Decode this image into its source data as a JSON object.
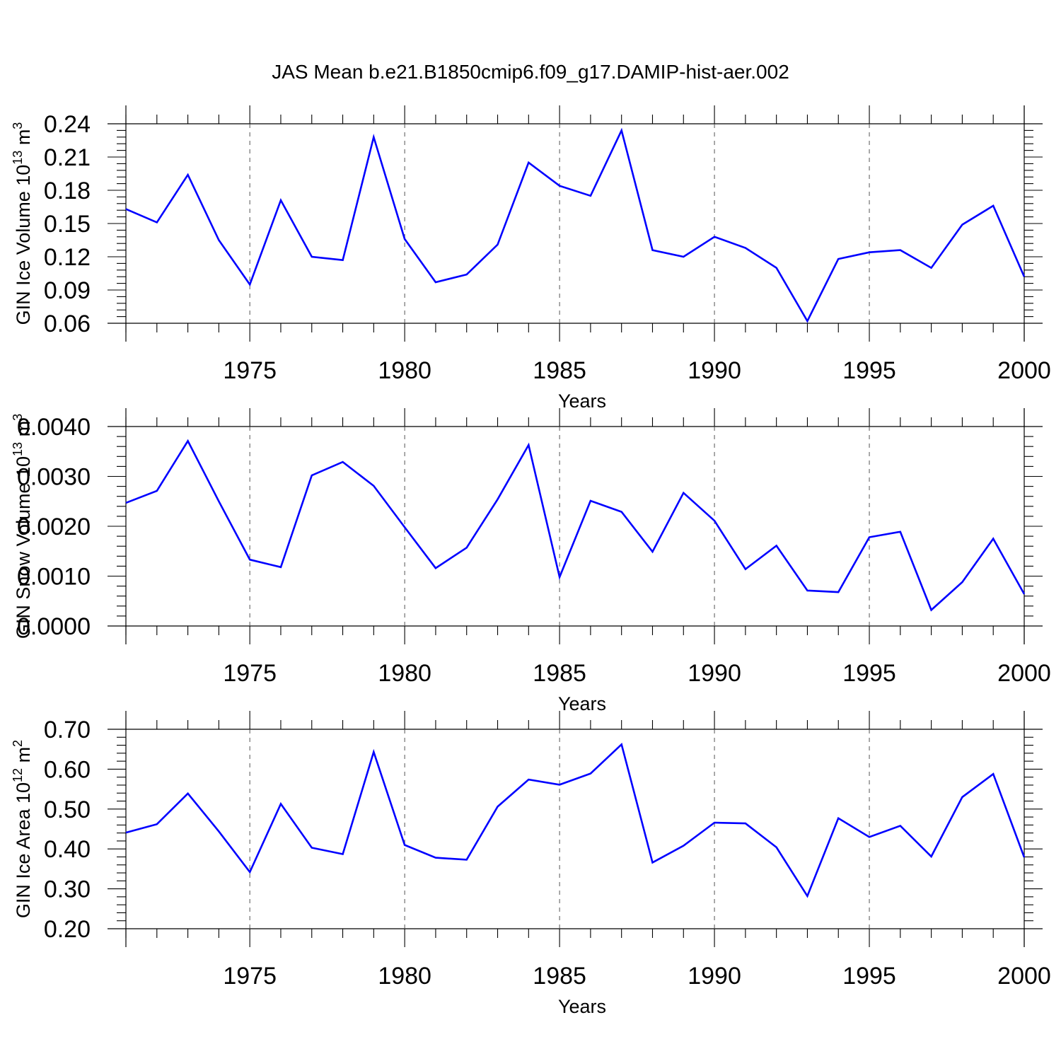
{
  "title": "JAS Mean b.e21.B1850cmip6.f09_g17.DAMIP-hist-aer.002",
  "colors": {
    "line": "#0000ff",
    "grid": "#555555",
    "axis": "#000000"
  },
  "chart_data": [
    {
      "type": "line",
      "ylabel_main": "GIN Ice Volume 10",
      "ylabel_exp": "13",
      "ylabel_unit": " m",
      "ylabel_unit_exp": "3",
      "xlabel": "Years",
      "xlim": [
        1971,
        2000
      ],
      "ylim": [
        0.06,
        0.24
      ],
      "yticks": [
        0.06,
        0.09,
        0.12,
        0.15,
        0.18,
        0.21,
        0.24
      ],
      "ytick_labels": [
        "0.06",
        "0.09",
        "0.12",
        "0.15",
        "0.18",
        "0.21",
        "0.24"
      ],
      "yminor_step": 0.006,
      "xticks": [
        1975,
        1980,
        1985,
        1990,
        1995,
        2000
      ],
      "xtick_labels": [
        "1975",
        "1980",
        "1985",
        "1990",
        "1995",
        "2000"
      ],
      "x": [
        1971,
        1972,
        1973,
        1974,
        1975,
        1976,
        1977,
        1978,
        1979,
        1980,
        1981,
        1982,
        1983,
        1984,
        1985,
        1986,
        1987,
        1988,
        1989,
        1990,
        1991,
        1992,
        1993,
        1994,
        1995,
        1996,
        1997,
        1998,
        1999,
        2000
      ],
      "series": [
        {
          "name": "GIN Ice Volume",
          "values": [
            0.163,
            0.151,
            0.194,
            0.135,
            0.095,
            0.171,
            0.12,
            0.117,
            0.228,
            0.136,
            0.097,
            0.104,
            0.131,
            0.205,
            0.184,
            0.175,
            0.234,
            0.126,
            0.12,
            0.138,
            0.128,
            0.11,
            0.062,
            0.118,
            0.124,
            0.126,
            0.11,
            0.149,
            0.166,
            0.102
          ]
        }
      ]
    },
    {
      "type": "line",
      "ylabel_main": "GIN Snow Volume 10",
      "ylabel_exp": "13",
      "ylabel_unit": " m",
      "ylabel_unit_exp": "3",
      "xlabel": "Years",
      "xlim": [
        1971,
        2000
      ],
      "ylim": [
        0.0,
        0.004
      ],
      "yticks": [
        0.0,
        0.001,
        0.002,
        0.003,
        0.004
      ],
      "ytick_labels": [
        "0.0000",
        "0.0010",
        "0.0020",
        "0.0030",
        "0.0040"
      ],
      "yminor_step": 0.0002,
      "xticks": [
        1975,
        1980,
        1985,
        1990,
        1995,
        2000
      ],
      "xtick_labels": [
        "1975",
        "1980",
        "1985",
        "1990",
        "1995",
        "2000"
      ],
      "x": [
        1971,
        1972,
        1973,
        1974,
        1975,
        1976,
        1977,
        1978,
        1979,
        1980,
        1981,
        1982,
        1983,
        1984,
        1985,
        1986,
        1987,
        1988,
        1989,
        1990,
        1991,
        1992,
        1993,
        1994,
        1995,
        1996,
        1997,
        1998,
        1999,
        2000
      ],
      "series": [
        {
          "name": "GIN Snow Volume",
          "values": [
            0.00247,
            0.00271,
            0.00371,
            0.0025,
            0.00133,
            0.00118,
            0.00302,
            0.00329,
            0.00281,
            0.00198,
            0.00116,
            0.00157,
            0.00254,
            0.00363,
            0.00098,
            0.00251,
            0.00229,
            0.00149,
            0.00267,
            0.00211,
            0.00114,
            0.00161,
            0.00071,
            0.00068,
            0.00178,
            0.00189,
            0.00032,
            0.00088,
            0.00175,
            0.00064
          ]
        }
      ]
    },
    {
      "type": "line",
      "ylabel_main": "GIN Ice Area 10",
      "ylabel_exp": "12",
      "ylabel_unit": " m",
      "ylabel_unit_exp": "2",
      "xlabel": "Years",
      "xlim": [
        1971,
        2000
      ],
      "ylim": [
        0.2,
        0.7
      ],
      "yticks": [
        0.2,
        0.3,
        0.4,
        0.5,
        0.6,
        0.7
      ],
      "ytick_labels": [
        "0.20",
        "0.30",
        "0.40",
        "0.50",
        "0.60",
        "0.70"
      ],
      "yminor_step": 0.02,
      "xticks": [
        1975,
        1980,
        1985,
        1990,
        1995,
        2000
      ],
      "xtick_labels": [
        "1975",
        "1980",
        "1985",
        "1990",
        "1995",
        "2000"
      ],
      "x": [
        1971,
        1972,
        1973,
        1974,
        1975,
        1976,
        1977,
        1978,
        1979,
        1980,
        1981,
        1982,
        1983,
        1984,
        1985,
        1986,
        1987,
        1988,
        1989,
        1990,
        1991,
        1992,
        1993,
        1994,
        1995,
        1996,
        1997,
        1998,
        1999,
        2000
      ],
      "series": [
        {
          "name": "GIN Ice Area",
          "values": [
            0.441,
            0.462,
            0.539,
            0.444,
            0.342,
            0.513,
            0.403,
            0.387,
            0.643,
            0.41,
            0.378,
            0.373,
            0.506,
            0.574,
            0.561,
            0.589,
            0.662,
            0.366,
            0.408,
            0.466,
            0.464,
            0.404,
            0.282,
            0.477,
            0.43,
            0.458,
            0.381,
            0.53,
            0.588,
            0.379
          ]
        }
      ]
    }
  ]
}
